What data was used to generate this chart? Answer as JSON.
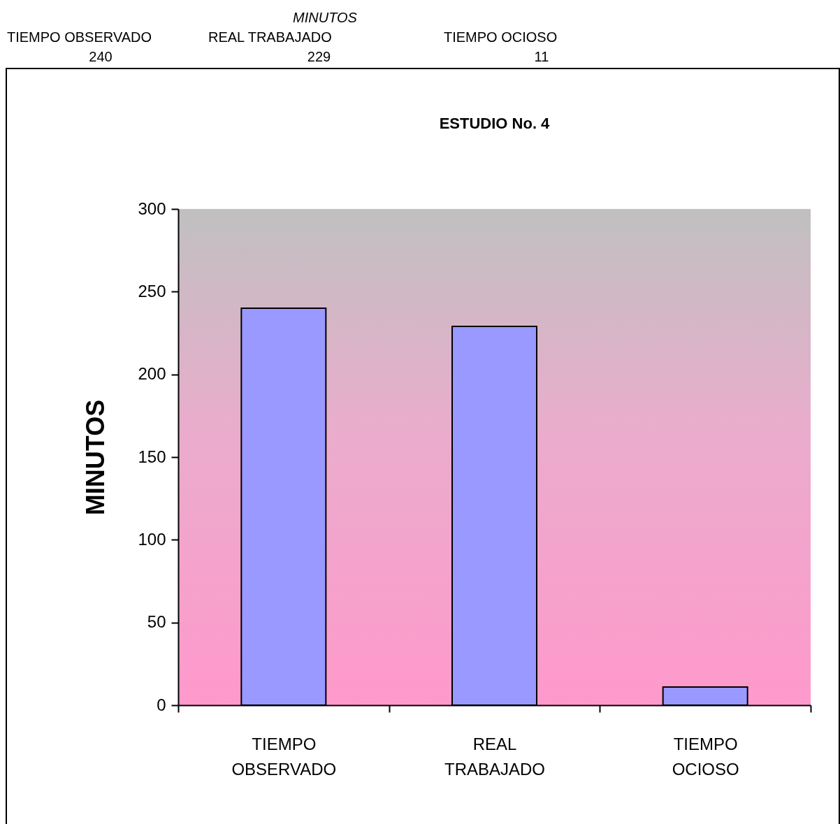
{
  "chart_data": {
    "type": "bar",
    "title": "ESTUDIO No. 4",
    "ylabel": "MINUTOS",
    "annotations": [
      "MINUTOS",
      "TIEMPO OBSERVADO",
      "REAL TRABAJADO",
      "TIEMPO OCIOSO",
      "240",
      "229",
      "11"
    ],
    "categories": [
      "TIEMPO OBSERVADO",
      "REAL TRABAJADO",
      "TIEMPO OCIOSO"
    ],
    "values": [
      240,
      229,
      11
    ],
    "color": "#9999ff",
    "ylim": [
      0,
      300
    ],
    "yticks": [
      0,
      50,
      100,
      150,
      200,
      250,
      300
    ],
    "grid": false
  }
}
